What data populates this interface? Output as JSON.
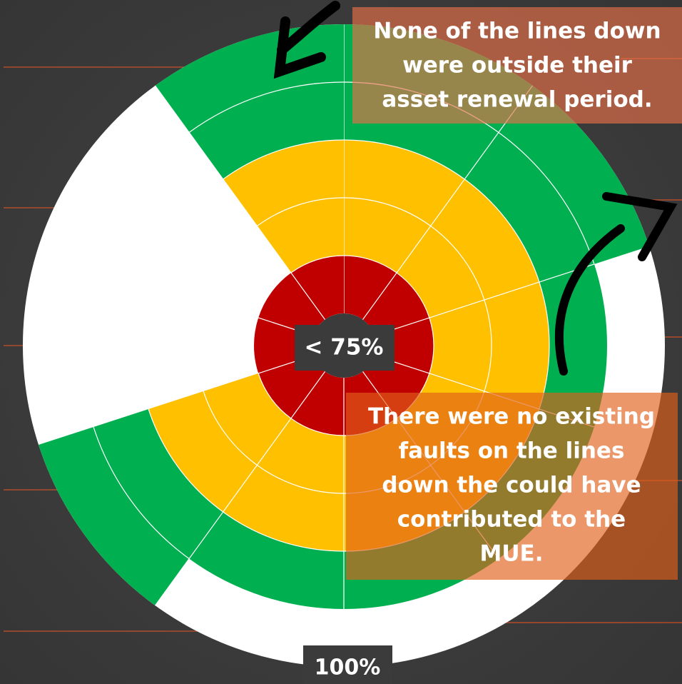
{
  "chart_data": {
    "type": "radial",
    "values": [
      100,
      100,
      82,
      82,
      82,
      82,
      100,
      28,
      28,
      100
    ],
    "rlim": [
      0,
      100
    ],
    "rticks": [
      {
        "value": 100,
        "label": "100%"
      }
    ],
    "ring_lines": [
      28,
      46,
      64,
      82
    ],
    "bands": [
      {
        "to": 28,
        "color": "#c00000"
      },
      {
        "to": 64,
        "color": "#ffc000"
      },
      {
        "to": 100,
        "color": "#00b050"
      }
    ],
    "center_label": "< 75%",
    "annotations": [
      {
        "lines": [
          "None of the lines down",
          "were outside their",
          "asset renewal period."
        ]
      },
      {
        "lines": [
          "There were no existing",
          "faults on the lines",
          "down the could have",
          "contributed to the",
          "MUE."
        ]
      }
    ]
  }
}
